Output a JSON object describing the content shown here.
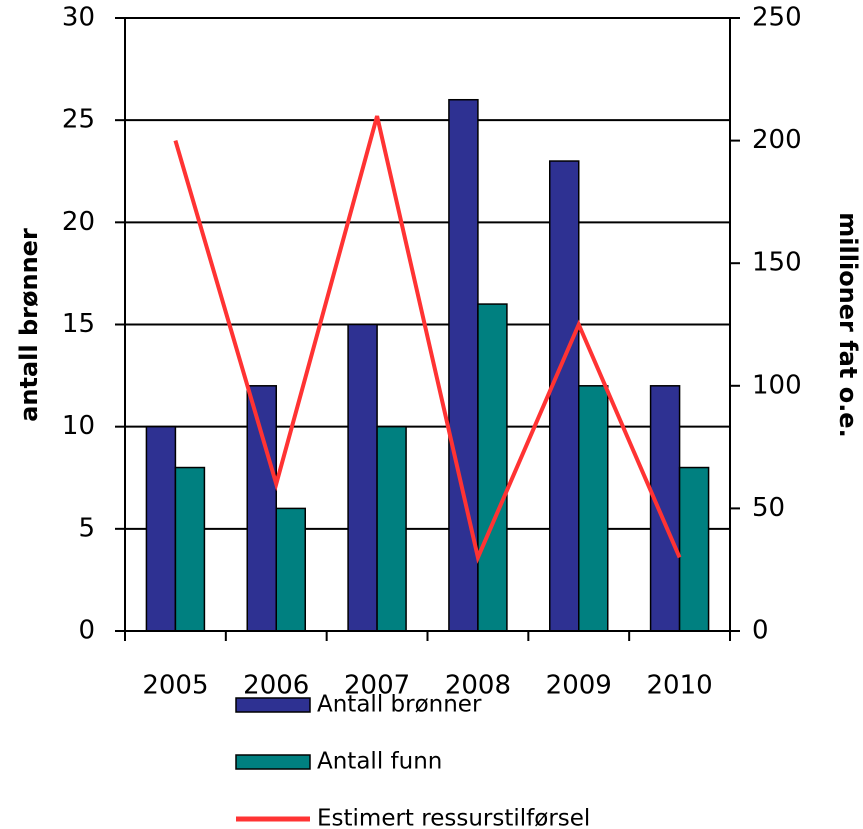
{
  "chart_data": {
    "type": "bar_line",
    "categories": [
      "2005",
      "2006",
      "2007",
      "2008",
      "2009",
      "2010"
    ],
    "y_label": "antall brønner",
    "y2_label": "millioner fat o.e.",
    "ylim": [
      0,
      30
    ],
    "yticks": [
      0,
      5,
      10,
      15,
      20,
      25,
      30
    ],
    "y2lim": [
      0,
      250
    ],
    "y2ticks": [
      0,
      50,
      100,
      150,
      200,
      250
    ],
    "grid": true,
    "legend": "bottom",
    "series": [
      {
        "name": "Antall brønner",
        "color": "#2e3192",
        "type": "bar",
        "values": [
          10,
          12,
          15,
          26,
          23,
          12
        ]
      },
      {
        "name": "Antall funn",
        "color": "#008080",
        "type": "bar",
        "values": [
          8,
          6,
          10,
          16,
          12,
          8
        ]
      },
      {
        "name": "Estimert ressurstilførsel",
        "color": "#ff3333",
        "type": "line",
        "axis": "y2",
        "values": [
          200,
          60,
          210,
          30,
          125,
          30
        ]
      }
    ]
  }
}
